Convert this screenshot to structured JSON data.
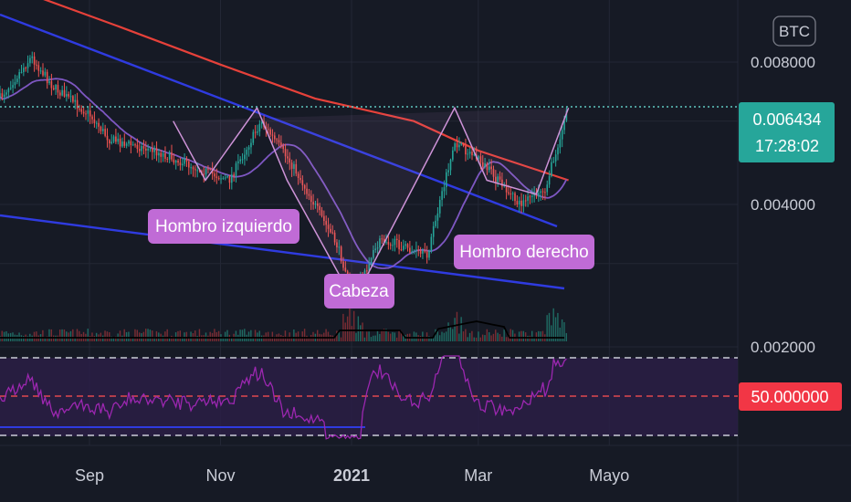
{
  "chart_data": {
    "type": "candlestick",
    "currency_label": "BTC",
    "x_ticks": [
      {
        "label": "Sep",
        "date": "2020-09"
      },
      {
        "label": "Nov",
        "date": "2020-11"
      },
      {
        "label": "2021",
        "date": "2021-01"
      },
      {
        "label": "Mar",
        "date": "2021-03"
      },
      {
        "label": "Mayo",
        "date": "2021-05"
      }
    ],
    "price_axis": {
      "ticks": [
        {
          "label": "0.008000",
          "value": 0.008
        },
        {
          "label": "0.004000",
          "value": 0.004
        },
        {
          "label": "0.002000",
          "value": 0.002
        }
      ],
      "ylim": [
        0.0014,
        0.0115
      ],
      "scale": "log"
    },
    "last_price": {
      "label": "0.006434",
      "value": 0.006434,
      "countdown": "17:28:02",
      "color": "#26a69a"
    },
    "rsi_level": {
      "label": "50.000000",
      "value": 50,
      "color": "#f23645"
    },
    "price_path": [
      {
        "date": "2020-07-20",
        "close": 0.0066
      },
      {
        "date": "2020-08-05",
        "close": 0.0082
      },
      {
        "date": "2020-08-15",
        "close": 0.0071
      },
      {
        "date": "2020-09-01",
        "close": 0.0062
      },
      {
        "date": "2020-09-10",
        "close": 0.0055
      },
      {
        "date": "2020-10-01",
        "close": 0.0052
      },
      {
        "date": "2020-10-20",
        "close": 0.0048
      },
      {
        "date": "2020-11-05",
        "close": 0.0045
      },
      {
        "date": "2020-11-20",
        "close": 0.006
      },
      {
        "date": "2020-12-05",
        "close": 0.0048
      },
      {
        "date": "2020-12-25",
        "close": 0.0033
      },
      {
        "date": "2021-01-02",
        "close": 0.0026
      },
      {
        "date": "2021-01-15",
        "close": 0.0034
      },
      {
        "date": "2021-02-05",
        "close": 0.0031
      },
      {
        "date": "2021-02-18",
        "close": 0.0054
      },
      {
        "date": "2021-03-01",
        "close": 0.005
      },
      {
        "date": "2021-03-20",
        "close": 0.004
      },
      {
        "date": "2021-04-01",
        "close": 0.0043
      },
      {
        "date": "2021-04-12",
        "close": 0.0064
      }
    ],
    "pattern_points": [
      {
        "date": "2020-10-10",
        "value": 0.006
      },
      {
        "date": "2020-10-25",
        "value": 0.0045
      },
      {
        "date": "2020-11-18",
        "value": 0.0064
      },
      {
        "date": "2020-12-02",
        "value": 0.0045
      },
      {
        "date": "2021-01-02",
        "value": 0.0025
      },
      {
        "date": "2021-02-18",
        "value": 0.0064
      },
      {
        "date": "2021-03-05",
        "value": 0.0045
      },
      {
        "date": "2021-03-28",
        "value": 0.0042
      },
      {
        "date": "2021-04-12",
        "value": 0.0064
      }
    ],
    "annotations": [
      {
        "text": "Hombro izquierdo"
      },
      {
        "text": "Cabeza"
      },
      {
        "text": "Hombro derecho"
      }
    ]
  }
}
